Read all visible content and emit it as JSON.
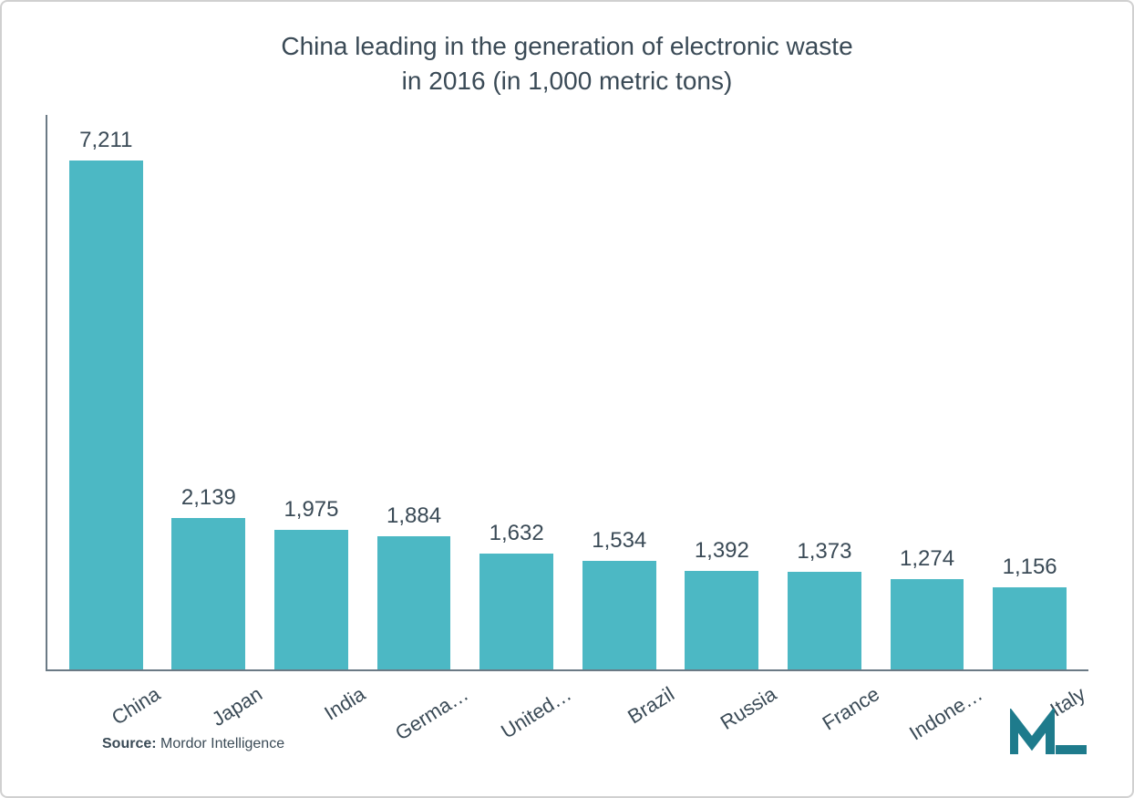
{
  "chart": {
    "type": "bar",
    "title_line1": "China leading in the generation of electronic waste",
    "title_line2": "in 2016 (in 1,000 metric tons)",
    "title_fontsize": 28,
    "title_color": "#3a4a56",
    "categories": [
      "China",
      "Japan",
      "India",
      "Germa…",
      "United…",
      "Brazil",
      "Russia",
      "France",
      "Indone…",
      "Italy"
    ],
    "values": [
      7211,
      2139,
      1975,
      1884,
      1632,
      1534,
      1392,
      1373,
      1274,
      1156
    ],
    "value_labels": [
      "7,211",
      "2,139",
      "1,975",
      "1,884",
      "1,632",
      "1,534",
      "1,392",
      "1,373",
      "1,274",
      "1,156"
    ],
    "bar_color": "#4cb8c4",
    "axis_color": "#6b7a85",
    "label_color": "#3a4a56",
    "label_fontsize": 24,
    "xlabel_fontsize": 22,
    "xlabel_rotation_deg": -32,
    "background_color": "#ffffff",
    "border_color": "#d0d0d0",
    "ylim": [
      0,
      7500
    ],
    "bar_width_ratio": 0.78,
    "source_prefix": "Source: ",
    "source_text": "Mordor Intelligence",
    "logo_color": "#1e7b8c",
    "logo_letter": "M"
  }
}
